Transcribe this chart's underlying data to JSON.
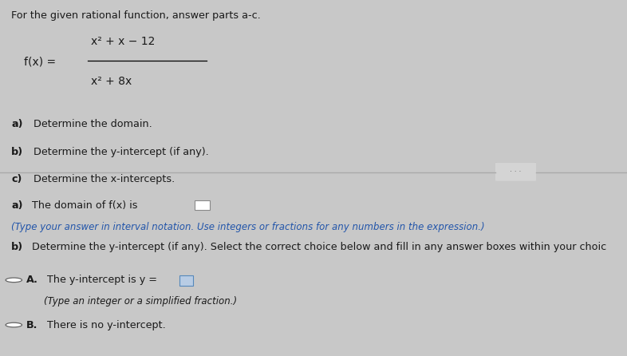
{
  "bg_top": "#d8d8d8",
  "bg_bottom": "#f0eeee",
  "bg_fig": "#c8c8c8",
  "text_color": "#1a1a1a",
  "blue_color": "#2255aa",
  "dark_gray": "#444444",
  "title": "For the given rational function, answer parts a-c.",
  "fx_label": "f(x) =",
  "numerator": "x² + x − 12",
  "denominator": "x² + 8x",
  "part_a_bold": "a)",
  "part_a_text": " Determine the domain.",
  "part_b_bold": "b)",
  "part_b_text": " Determine the y-intercept (if any).",
  "part_c_bold": "c)",
  "part_c_text": " Determine the x-intercepts.",
  "answer_a_bold": "a)",
  "answer_a_text": " The domain of f(x) is",
  "answer_a_hint": "(Type your answer in interval notation. Use integers or fractions for any numbers in the expression.)",
  "answer_b_label": "b)",
  "answer_b_text": " Determine the y-intercept (if any). Select the correct choice below and fill in any answer boxes within your choic",
  "choice_A_bold": "A.",
  "choice_A_text": " The y-intercept is y =",
  "choice_A_hint": "(Type an integer or a simplified fraction.)",
  "choice_B_bold": "B.",
  "choice_B_text": " There is no y-intercept."
}
